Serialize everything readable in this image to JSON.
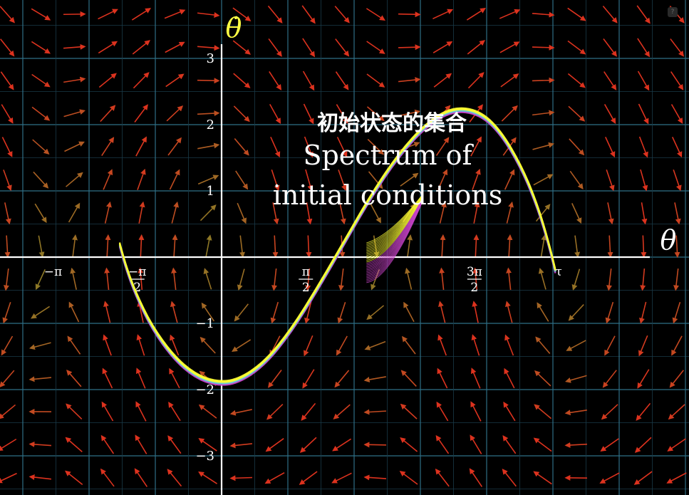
{
  "chart_data": {
    "type": "line",
    "title": "初始状态的集合",
    "subtitle": [
      "Spectrum of",
      "initial conditions"
    ],
    "xlabel": "θ",
    "ylabel": "θ̇",
    "xlim": [
      -4.0,
      8.0
    ],
    "ylim": [
      -3.5,
      3.9
    ],
    "xticks": [
      {
        "value": -3.14159,
        "label": "−π"
      },
      {
        "value": -1.5708,
        "label": "−π/2"
      },
      {
        "value": 1.5708,
        "label": "π/2"
      },
      {
        "value": 4.7124,
        "label": "3π/2"
      },
      {
        "value": 6.2832,
        "label": "τ"
      }
    ],
    "yticks": [
      {
        "value": 3,
        "label": "3"
      },
      {
        "value": 2,
        "label": "2"
      },
      {
        "value": 1,
        "label": "1"
      },
      {
        "value": -1,
        "label": "−1"
      },
      {
        "value": -2,
        "label": "−2"
      },
      {
        "value": -3,
        "label": "−3"
      }
    ],
    "grid": true,
    "vector_field": "pendulum: dθ/dt = θ̇, dθ̇/dt = −0.3·θ̇ − 3·sin(θ)",
    "series": [
      {
        "color_range": [
          "#ffff33",
          "#66ccdd",
          "#cc44cc"
        ],
        "x": [
          -1.9,
          -1.78,
          -1.6,
          -1.3,
          -0.9,
          -0.5,
          -0.1,
          0.3,
          0.8,
          1.3,
          1.8,
          2.3,
          2.8,
          3.3,
          3.8,
          4.3,
          4.8,
          5.2,
          5.6,
          5.9,
          6.1,
          6.22
        ],
        "y": [
          0.2,
          -0.15,
          -0.55,
          -1.05,
          -1.5,
          -1.78,
          -1.9,
          -1.87,
          -1.6,
          -1.1,
          -0.45,
          0.25,
          0.95,
          1.55,
          2.0,
          2.25,
          2.2,
          1.9,
          1.35,
          0.75,
          0.2,
          -0.2
        ]
      }
    ]
  }
}
